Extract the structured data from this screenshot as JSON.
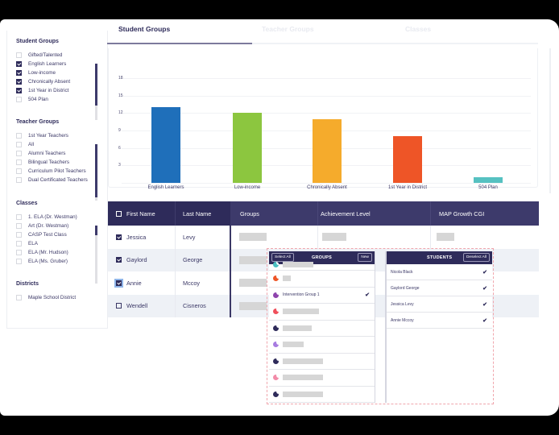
{
  "sidebar": {
    "sections": [
      {
        "title": "Student Groups",
        "items": [
          {
            "label": "Gifted/Talented",
            "checked": false
          },
          {
            "label": "English Learners",
            "checked": true
          },
          {
            "label": "Low-income",
            "checked": true
          },
          {
            "label": "Chronically Absent",
            "checked": true
          },
          {
            "label": "1st Year in District",
            "checked": true
          },
          {
            "label": "504 Plan",
            "checked": false
          }
        ]
      },
      {
        "title": "Teacher Groups",
        "items": [
          {
            "label": "1st Year Teachers",
            "checked": false
          },
          {
            "label": "All",
            "checked": false
          },
          {
            "label": "Alumni Teachers",
            "checked": false
          },
          {
            "label": "Bilingual Teachers",
            "checked": false
          },
          {
            "label": "Curriculum Pilot Teachers",
            "checked": false
          },
          {
            "label": "Dual Certificated Teachers",
            "checked": false
          }
        ]
      },
      {
        "title": "Classes",
        "items": [
          {
            "label": "1. ELA (Dr. Westman)",
            "checked": false
          },
          {
            "label": "Art (Dr. Westman)",
            "checked": false
          },
          {
            "label": "CASP Test Class",
            "checked": false
          },
          {
            "label": "ELA",
            "checked": false
          },
          {
            "label": "ELA (Mr. Hudson)",
            "checked": false
          },
          {
            "label": "ELA (Ms. Gruber)",
            "checked": false
          }
        ]
      },
      {
        "title": "Districts",
        "items": [
          {
            "label": "Maple School District",
            "checked": false
          }
        ]
      }
    ]
  },
  "tabs": [
    {
      "label": "Student Groups",
      "active": true
    },
    {
      "label": "Teacher Groups",
      "active": false
    },
    {
      "label": "Classes",
      "active": false
    }
  ],
  "chart_data": {
    "type": "bar",
    "title": "",
    "xlabel": "",
    "ylabel": "",
    "categories": [
      "English Learners",
      "Low-income",
      "Chronically Absent",
      "1st Year in District",
      "504 Plan"
    ],
    "values": [
      13,
      12,
      11,
      8,
      1
    ],
    "colors": [
      "#1f6fba",
      "#8cc63f",
      "#f5ab2c",
      "#ee5527",
      "#56c1c1"
    ],
    "yticks": [
      3,
      6,
      9,
      12,
      15,
      18
    ],
    "ylim": [
      0,
      18
    ],
    "grid": true,
    "legend": "none"
  },
  "table": {
    "headers": [
      "First Name",
      "Last Name",
      "Groups",
      "Achievement Level",
      "MAP Growth CGI"
    ],
    "rows": [
      {
        "first": "Jessica",
        "last": "Levy",
        "checked": true
      },
      {
        "first": "Gaylord",
        "last": "George",
        "checked": true
      },
      {
        "first": "Annie",
        "last": "Mccoy",
        "checked": true
      },
      {
        "first": "Wendell",
        "last": "Cisneros",
        "checked": false
      }
    ]
  },
  "groups_panel": {
    "title": "GROUPS",
    "select_all_label": "Select All",
    "new_label": "New",
    "items": [
      {
        "label": "",
        "color": "#4bbfc0",
        "checked": false
      },
      {
        "label": "",
        "color": "#ee5527",
        "checked": false
      },
      {
        "label": "Intervention Group 1",
        "color": "#8e44ad",
        "checked": true
      },
      {
        "label": "",
        "color": "#ef4f5b",
        "checked": false
      },
      {
        "label": "",
        "color": "#2e2b5a",
        "checked": false
      },
      {
        "label": "",
        "color": "#a77be0",
        "checked": false
      },
      {
        "label": "",
        "color": "#2e2b5a",
        "checked": false
      },
      {
        "label": "",
        "color": "#f28ba8",
        "checked": false
      },
      {
        "label": "",
        "color": "#2e2b5a",
        "checked": false
      }
    ]
  },
  "students_panel": {
    "title": "STUDENTS",
    "deselect_all_label": "Deselect All",
    "items": [
      {
        "label": "Nicola Black",
        "checked": true
      },
      {
        "label": "Gaylord George",
        "checked": true
      },
      {
        "label": "Jessica Levy",
        "checked": true
      },
      {
        "label": "Annie Mccoy",
        "checked": true
      }
    ]
  },
  "colors": {
    "primary": "#2e2b5a",
    "header_secondary": "#3d3a6b",
    "row_alt": "#eef1f6",
    "popup_border": "#f0a6ad"
  }
}
